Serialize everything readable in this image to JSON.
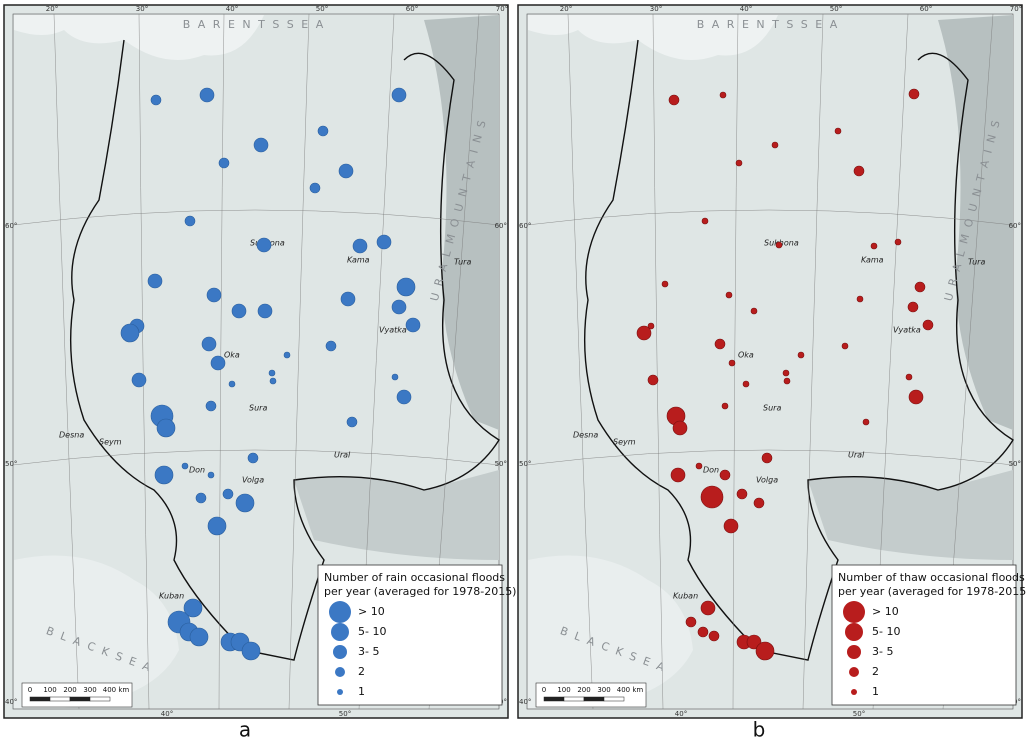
{
  "maps": [
    {
      "label": "a",
      "legend": {
        "title": [
          "Number of rain occasional floods",
          "per year (averaged for 1978-2015)"
        ],
        "classes": [
          "> 10",
          "5- 10",
          "3- 5",
          "2",
          "1"
        ]
      }
    },
    {
      "label": "b",
      "legend": {
        "title": [
          "Number of thaw occasional floods",
          "per year (averaged for 1978-2015)"
        ],
        "classes": [
          "> 10",
          "5- 10",
          "3- 5",
          "2",
          "1"
        ]
      }
    }
  ],
  "scale_bar": [
    "0",
    "100",
    "200",
    "300",
    "400 km"
  ],
  "graticule": {
    "top": [
      "20°",
      "30°",
      "40°",
      "50°",
      "60°",
      "70°"
    ],
    "side": [
      "60°",
      "50°",
      "40°"
    ],
    "bottom": [
      "40°",
      "50°"
    ]
  },
  "place_labels": {
    "barents_sea": "B A R E N T S     S E A",
    "black_sea": "B L A C K     S E A",
    "urals": "U R A L     M O U N T A I N S"
  },
  "rivers": [
    "Sukhona",
    "Kama",
    "Vyatka",
    "Oka",
    "Sura",
    "Volga",
    "Don",
    "Desna",
    "Seym",
    "Kuban",
    "Ural",
    "Tura"
  ]
}
